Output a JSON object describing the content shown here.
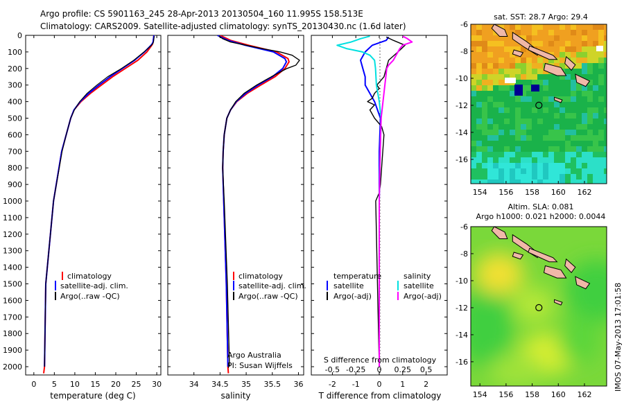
{
  "title_line1": "Argo profile: CS 5901163_245 28-Apr-2013 20130504_160 11.995S 158.513E",
  "title_line2": "Climatology: CARS2009. Satellite-adjusted climatology: synTS_20130430.nc (1.6d later)",
  "footer_stamp": "IMOS 07-May-2013 17:01:58",
  "colors": {
    "climatology": "#ff0000",
    "satellite": "#0000ff",
    "argo": "#000000",
    "argo_adj": "#ff00ff",
    "sat_diff": "#00e0e0"
  },
  "chart_data": [
    {
      "id": "temperature",
      "type": "line",
      "xlabel": "temperature (deg C)",
      "ylabel": "",
      "xlim": [
        -2,
        31
      ],
      "ylim": [
        2050,
        0
      ],
      "xticks": [
        0,
        5,
        10,
        15,
        20,
        25,
        30
      ],
      "yticks": [
        0,
        100,
        200,
        300,
        400,
        500,
        600,
        700,
        800,
        900,
        1000,
        1100,
        1200,
        1300,
        1400,
        1500,
        1600,
        1700,
        1800,
        1900,
        2000
      ],
      "legend": [
        "climatology",
        "satellite-adj. clim.",
        "Argo(..raw -QC)"
      ],
      "series": [
        {
          "name": "climatology",
          "color": "#ff0000",
          "width": 2,
          "depth": [
            2040,
            2000,
            1500,
            1000,
            700,
            600,
            500,
            450,
            400,
            350,
            300,
            250,
            200,
            150,
            100,
            60,
            50,
            40,
            20,
            0
          ],
          "values": [
            2.4,
            2.6,
            2.9,
            4.8,
            6.8,
            7.9,
            9.0,
            9.8,
            11.5,
            13.8,
            16.5,
            19.2,
            22.3,
            25.4,
            27.6,
            28.8,
            29.0,
            29.1,
            29.2,
            29.3
          ]
        },
        {
          "name": "satellite-adj. clim.",
          "color": "#0000ff",
          "width": 2,
          "depth": [
            2000,
            1500,
            1000,
            700,
            600,
            500,
            450,
            400,
            350,
            300,
            250,
            200,
            150,
            100,
            60,
            50,
            40,
            20,
            0
          ],
          "values": [
            2.6,
            2.9,
            4.8,
            6.8,
            7.9,
            9.0,
            9.8,
            11.3,
            13.4,
            15.9,
            18.6,
            21.6,
            24.6,
            27.0,
            28.6,
            28.9,
            29.1,
            29.2,
            29.3
          ]
        },
        {
          "name": "Argo(..raw -QC)",
          "color": "#000000",
          "width": 1.2,
          "depth": [
            2000,
            1500,
            1000,
            700,
            600,
            500,
            450,
            400,
            350,
            300,
            250,
            200,
            150,
            100,
            60,
            50,
            40,
            20,
            5
          ],
          "values": [
            2.6,
            2.9,
            4.8,
            6.9,
            7.9,
            9.0,
            9.9,
            11.2,
            13.0,
            15.4,
            18.0,
            21.4,
            24.4,
            26.9,
            28.7,
            29.0,
            29.2,
            29.3,
            29.4
          ]
        }
      ]
    },
    {
      "id": "salinity",
      "type": "line",
      "xlabel": "salinity",
      "xlim": [
        33.5,
        36.1
      ],
      "ylim": [
        2050,
        0
      ],
      "xticks": [
        34,
        34.5,
        35,
        35.5,
        36
      ],
      "legend": [
        "climatology",
        "satellite-adj. clim.",
        "Argo(..raw -QC)"
      ],
      "annotation": [
        "Argo Australia",
        "PI: Susan Wijffels"
      ],
      "series": [
        {
          "name": "climatology",
          "color": "#ff0000",
          "width": 2,
          "depth": [
            2040,
            2000,
            1500,
            1000,
            800,
            700,
            600,
            500,
            450,
            400,
            350,
            300,
            250,
            200,
            160,
            140,
            100,
            60,
            30,
            0
          ],
          "values": [
            34.66,
            34.65,
            34.62,
            34.57,
            34.55,
            34.56,
            34.58,
            34.63,
            34.7,
            34.82,
            35.02,
            35.28,
            35.55,
            35.74,
            35.82,
            35.8,
            35.58,
            35.05,
            34.7,
            34.5
          ]
        },
        {
          "name": "satellite-adj. clim.",
          "color": "#0000ff",
          "width": 2,
          "depth": [
            2000,
            1500,
            1000,
            800,
            700,
            600,
            500,
            450,
            400,
            350,
            300,
            250,
            200,
            160,
            140,
            100,
            60,
            30,
            0
          ],
          "values": [
            34.65,
            34.62,
            34.57,
            34.55,
            34.56,
            34.58,
            34.63,
            34.7,
            34.81,
            34.99,
            35.23,
            35.5,
            35.7,
            35.77,
            35.74,
            35.52,
            34.98,
            34.65,
            34.45
          ]
        },
        {
          "name": "Argo(..raw -QC)",
          "color": "#000000",
          "width": 1.4,
          "depth": [
            2000,
            1500,
            1000,
            800,
            700,
            600,
            500,
            450,
            400,
            350,
            300,
            250,
            200,
            180,
            150,
            120,
            100,
            80,
            60,
            40,
            20,
            5
          ],
          "values": [
            34.68,
            34.64,
            34.58,
            34.55,
            34.56,
            34.58,
            34.63,
            34.7,
            34.8,
            34.96,
            35.2,
            35.48,
            35.78,
            35.95,
            36.02,
            35.88,
            35.65,
            35.3,
            35.0,
            34.7,
            34.55,
            34.48
          ]
        }
      ]
    },
    {
      "id": "difference",
      "type": "line",
      "xlabel": "T difference from climatology",
      "xlabel_top": "S difference from climatology",
      "xlim": [
        -2.9,
        2.9
      ],
      "ylim": [
        2050,
        0
      ],
      "xticks": [
        -2,
        -1,
        0,
        1,
        2
      ],
      "xticks_s": [
        -0.5,
        -0.25,
        0,
        0.25,
        0.5
      ],
      "legend_temperature": [
        "temperature",
        "satellite",
        "Argo(-adj)"
      ],
      "legend_salinity": [
        "salinity",
        "satellite",
        "Argo(-adj)"
      ],
      "series": [
        {
          "name": "temperature satellite",
          "color": "#0000ff",
          "width": 2,
          "depth": [
            2000,
            1000,
            700,
            500,
            400,
            300,
            250,
            200,
            150,
            100,
            60,
            30,
            10
          ],
          "values": [
            0.0,
            0.0,
            0.0,
            0.05,
            -0.2,
            -0.6,
            -0.6,
            -0.7,
            -0.8,
            -0.6,
            -0.3,
            0.3,
            0.4
          ]
        },
        {
          "name": "temperature Argo(-adj)",
          "color": "#000000",
          "width": 1.4,
          "depth": [
            2000,
            1000,
            950,
            900,
            800,
            700,
            600,
            550,
            500,
            450,
            420,
            400,
            380,
            350,
            320,
            300,
            250,
            200,
            150,
            100,
            60,
            30,
            10
          ],
          "values": [
            0.0,
            -0.15,
            0.0,
            0.05,
            0.1,
            0.15,
            0.2,
            0.1,
            -0.2,
            -0.4,
            -0.2,
            -0.5,
            -0.3,
            -0.2,
            0.0,
            -0.1,
            0.2,
            0.3,
            0.4,
            0.8,
            1.1,
            0.6,
            0.3
          ]
        },
        {
          "name": "salinity satellite",
          "color": "#00e0e0",
          "width": 2,
          "depth": [
            2000,
            1000,
            700,
            500,
            400,
            300,
            200,
            150,
            120,
            100,
            80,
            60,
            40,
            20,
            5
          ],
          "values": [
            0.0,
            0.0,
            0.01,
            0.02,
            0.0,
            -0.03,
            -0.04,
            -0.05,
            -0.1,
            -0.18,
            -0.35,
            -0.45,
            -0.3,
            -0.2,
            -0.1
          ]
        },
        {
          "name": "salinity Argo(-adj)",
          "color": "#ff00ff",
          "width": 2,
          "depth": [
            2000,
            1000,
            700,
            500,
            400,
            300,
            250,
            200,
            180,
            150,
            120,
            100,
            80,
            60,
            40,
            20,
            5
          ],
          "values": [
            0.0,
            0.0,
            0.01,
            0.02,
            0.04,
            0.06,
            0.07,
            0.08,
            0.1,
            0.15,
            0.18,
            0.2,
            0.22,
            0.25,
            0.35,
            0.3,
            0.25
          ]
        }
      ]
    },
    {
      "id": "sst-map",
      "type": "heatmap",
      "title": "sat. SST: 28.7  Argo: 29.4",
      "xticks": [
        154,
        156,
        158,
        160,
        162
      ],
      "yticks": [
        -6,
        -8,
        -10,
        -12,
        -14,
        -16
      ],
      "xlim": [
        153.3,
        163.7
      ],
      "ylim": [
        -17.8,
        -6
      ],
      "argo_position": {
        "lon": 158.513,
        "lat": -11.995
      }
    },
    {
      "id": "sla-map",
      "type": "heatmap",
      "title": "Altim. SLA: 0.081",
      "subtitle": "Argo h1000: 0.021  h2000: 0.0044",
      "xticks": [
        154,
        156,
        158,
        160,
        162
      ],
      "yticks": [
        -6,
        -8,
        -10,
        -12,
        -14,
        -16
      ],
      "xlim": [
        153.3,
        163.7
      ],
      "ylim": [
        -17.8,
        -6
      ],
      "argo_position": {
        "lon": 158.513,
        "lat": -11.995
      }
    }
  ]
}
